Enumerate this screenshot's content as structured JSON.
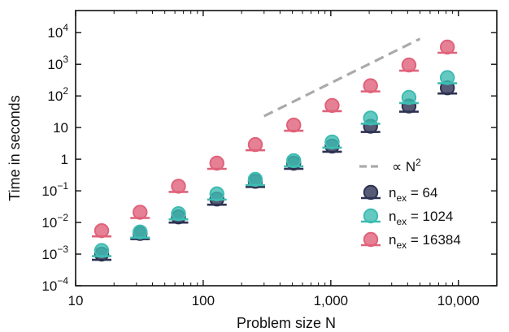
{
  "chart_data": {
    "type": "scatter",
    "xlabel": "Problem size N",
    "ylabel": "Time in seconds",
    "x_scale": "log",
    "y_scale": "log",
    "xlim": [
      10,
      20000
    ],
    "ylim": [
      0.0001,
      50000
    ],
    "x_ticks": [
      {
        "value": 10,
        "label": "10"
      },
      {
        "value": 100,
        "label": "100"
      },
      {
        "value": 1000,
        "label": "1,000"
      },
      {
        "value": 10000,
        "label": "10,000"
      }
    ],
    "y_ticks": [
      {
        "value": 0.0001,
        "base": "10",
        "exp": "−4",
        "label": ""
      },
      {
        "value": 0.001,
        "base": "10",
        "exp": "−3",
        "label": ""
      },
      {
        "value": 0.01,
        "base": "10",
        "exp": "−2",
        "label": ""
      },
      {
        "value": 0.1,
        "base": "10",
        "exp": "−1",
        "label": ""
      },
      {
        "value": 1,
        "base": "",
        "exp": "",
        "label": "1"
      },
      {
        "value": 10,
        "base": "",
        "exp": "",
        "label": "10"
      },
      {
        "value": 100,
        "base": "10",
        "exp": "2",
        "label": ""
      },
      {
        "value": 1000,
        "base": "10",
        "exp": "3",
        "label": ""
      },
      {
        "value": 10000,
        "base": "10",
        "exp": "4",
        "label": ""
      }
    ],
    "x": [
      16,
      32,
      64,
      128,
      256,
      512,
      1024,
      2048,
      4096,
      8192
    ],
    "series": [
      {
        "name_base": "n",
        "name_sub": "ex",
        "name_rest": " = 64",
        "color": "#2e3252",
        "values": [
          0.001,
          0.0045,
          0.015,
          0.055,
          0.2,
          0.75,
          2.6,
          11,
          48,
          180
        ]
      },
      {
        "name_base": "n",
        "name_sub": "ex",
        "name_rest": " = 1024",
        "color": "#3dbcb2",
        "values": [
          0.0013,
          0.005,
          0.019,
          0.08,
          0.23,
          0.9,
          3.5,
          20,
          90,
          380
        ]
      },
      {
        "name_base": "n",
        "name_sub": "ex",
        "name_rest": " = 16384",
        "color": "#e0627a",
        "values": [
          0.0055,
          0.021,
          0.14,
          0.75,
          2.9,
          12,
          50,
          210,
          950,
          3500
        ]
      }
    ],
    "reference_line": {
      "label_prefix": "∝ N",
      "label_exp": "2",
      "color": "#aaaaaa",
      "x": [
        300,
        5000
      ],
      "y": [
        23,
        6400
      ]
    },
    "grid": false,
    "legend_position": "lower-right"
  }
}
